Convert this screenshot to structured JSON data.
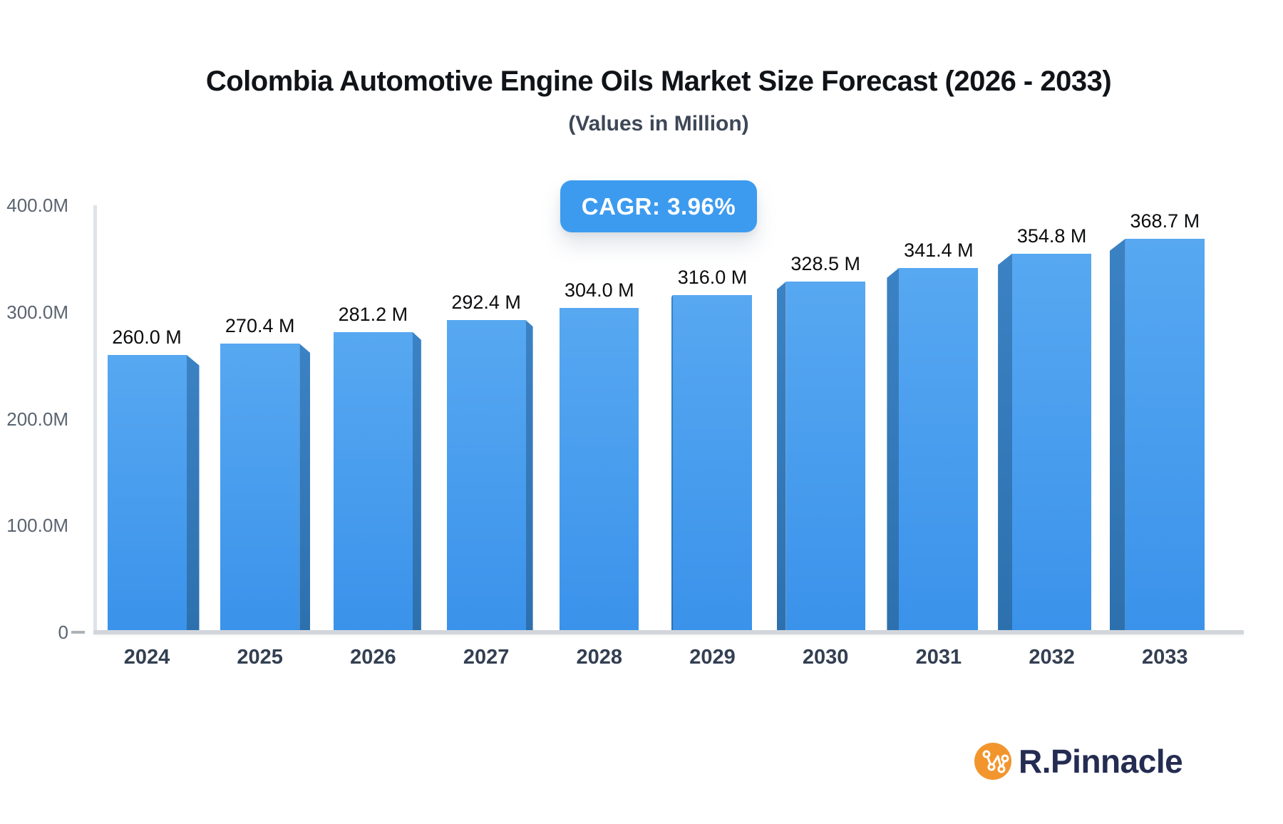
{
  "header": {
    "title": "Colombia Automotive Engine Oils Market Size Forecast (2026 - 2033)",
    "subtitle": "(Values in Million)"
  },
  "badge": {
    "label": "CAGR: 3.96%",
    "bg": "#3d9bef",
    "text_color": "#ffffff"
  },
  "chart_data": {
    "type": "bar",
    "title": "Colombia Automotive Engine Oils Market Size Forecast (2026 - 2033)",
    "subtitle": "(Values in Million)",
    "unit": "Million",
    "cagr": "3.96%",
    "categories": [
      "2024",
      "2025",
      "2026",
      "2027",
      "2028",
      "2029",
      "2030",
      "2031",
      "2032",
      "2033"
    ],
    "values": [
      260.0,
      270.4,
      281.2,
      292.4,
      304.0,
      316.0,
      328.5,
      341.4,
      354.8,
      368.7
    ],
    "value_labels": [
      "260.0 M",
      "270.4 M",
      "281.2 M",
      "292.4 M",
      "304.0 M",
      "316.0 M",
      "328.5 M",
      "341.4 M",
      "354.8 M",
      "368.7 M"
    ],
    "ylim": [
      0,
      400
    ],
    "y_ticks": [
      {
        "value": 400,
        "label": "400.0M"
      },
      {
        "value": 300,
        "label": "300.0M"
      },
      {
        "value": 200,
        "label": "200.0M"
      },
      {
        "value": 100,
        "label": "100.0M"
      },
      {
        "value": 0,
        "label": "0"
      }
    ],
    "grid": false,
    "legend": false
  },
  "colors": {
    "bar_face_top": "#57a8f1",
    "bar_face_bottom": "#3a92ea",
    "bar_side_top": "#3b82c4",
    "bar_side_bottom": "#2d70ae",
    "axis_line": "#dfe3e7",
    "baseline": "#d2d6db",
    "y_label": "#5a6470",
    "x_label": "#333f52",
    "value_label": "#0b0c0e",
    "title": "#101317",
    "subtitle": "#3d4757",
    "badge_bg": "#3d9bef",
    "logo_orange": "#f2952d",
    "logo_navy": "#252c52"
  },
  "branding": {
    "logo_text": "R.Pinnacle"
  }
}
